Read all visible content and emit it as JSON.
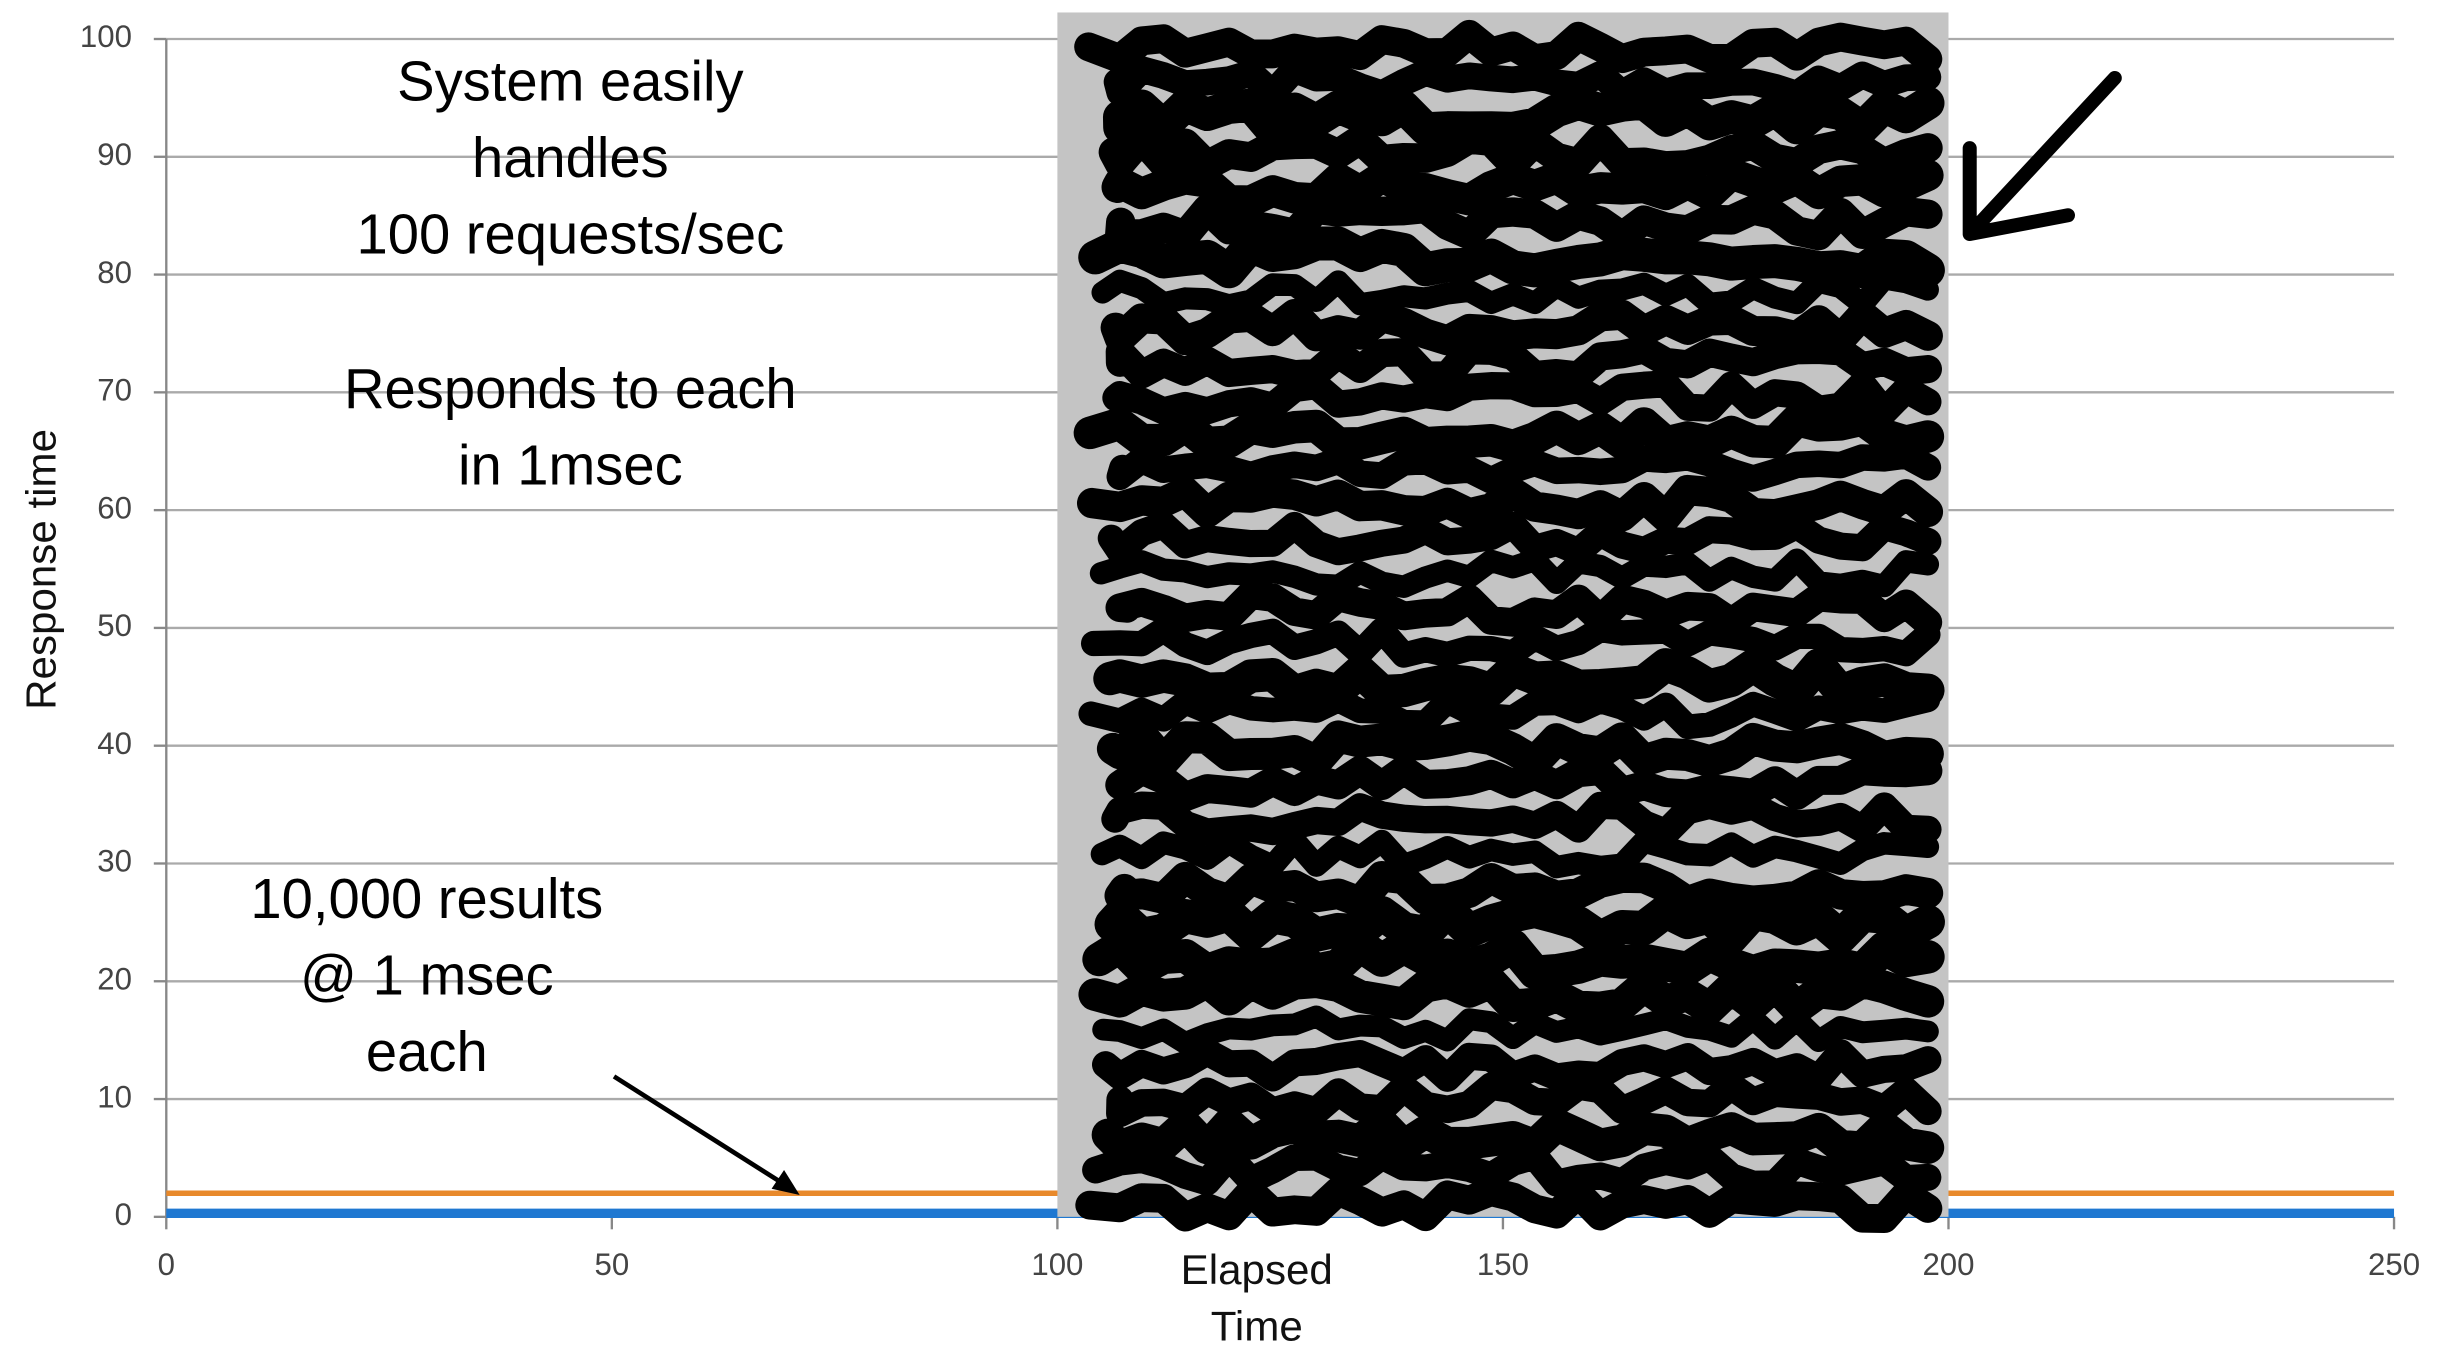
{
  "chart_data": {
    "type": "line",
    "xlabel": [
      "Elapsed",
      "Time"
    ],
    "ylabel": "Response time",
    "x": [
      0,
      250
    ],
    "series": [
      {
        "color": "#e8892b",
        "values": [
          2,
          2
        ]
      },
      {
        "color": "#1f78d1",
        "values": [
          0.3,
          0.3
        ]
      }
    ],
    "xlim": [
      0,
      250
    ],
    "ylim": [
      0,
      100
    ],
    "xticks": [
      0,
      50,
      100,
      150,
      200,
      250
    ],
    "yticks": [
      0,
      10,
      20,
      30,
      40,
      50,
      60,
      70,
      80,
      90,
      100
    ],
    "grid": true,
    "shaded_region": [
      100,
      200
    ],
    "annotations": [
      {
        "lines": [
          "System easily",
          "handles",
          "100 requests/sec"
        ]
      },
      {
        "lines": [
          "Responds to each",
          "in 1msec"
        ]
      },
      {
        "lines": [
          "10,000 results",
          "@ 1 msec",
          "each"
        ]
      }
    ]
  }
}
